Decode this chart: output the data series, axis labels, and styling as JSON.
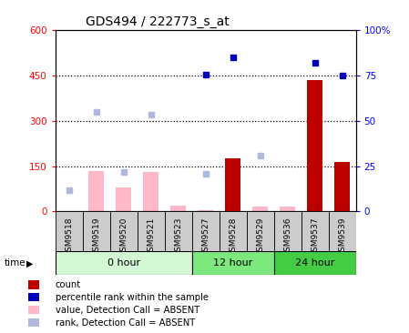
{
  "title": "GDS494 / 222773_s_at",
  "samples": [
    "GSM9518",
    "GSM9519",
    "GSM9520",
    "GSM9521",
    "GSM9523",
    "GSM9527",
    "GSM9528",
    "GSM9529",
    "GSM9536",
    "GSM9537",
    "GSM9539"
  ],
  "groups": [
    "0 hour",
    "0 hour",
    "0 hour",
    "0 hour",
    "0 hour",
    "12 hour",
    "12 hour",
    "12 hour",
    "24 hour",
    "24 hour",
    "24 hour"
  ],
  "count_values": [
    null,
    null,
    null,
    null,
    null,
    null,
    175,
    null,
    null,
    435,
    165
  ],
  "percentile_values": [
    null,
    null,
    null,
    null,
    null,
    75.5,
    85,
    null,
    null,
    82,
    75
  ],
  "absent_value_bars": [
    null,
    135,
    80,
    130,
    20,
    5,
    null,
    15,
    15,
    null,
    null
  ],
  "absent_rank_dots": [
    70,
    330,
    130,
    320,
    null,
    125,
    null,
    185,
    null,
    null,
    null
  ],
  "ylim_left": [
    0,
    600
  ],
  "ylim_right": [
    0,
    100
  ],
  "yticks_left": [
    0,
    150,
    300,
    450,
    600
  ],
  "yticks_right": [
    0,
    25,
    50,
    75,
    100
  ],
  "ytick_labels_left": [
    "0",
    "150",
    "300",
    "450",
    "600"
  ],
  "ytick_labels_right": [
    "0",
    "25",
    "50",
    "75",
    "100%"
  ],
  "hlines": [
    150,
    300,
    450
  ],
  "group_colors": {
    "0 hour": "#d4f7d4",
    "12 hour": "#7de87d",
    "24 hour": "#44cc44"
  },
  "color_count": "#bb0000",
  "color_percentile": "#0000bb",
  "color_absent_value": "#ffb8c8",
  "color_absent_rank": "#b0b8dd",
  "bar_width": 0.55,
  "legend_items": [
    {
      "label": "count",
      "color": "#bb0000"
    },
    {
      "label": "percentile rank within the sample",
      "color": "#0000bb"
    },
    {
      "label": "value, Detection Call = ABSENT",
      "color": "#ffb8c8"
    },
    {
      "label": "rank, Detection Call = ABSENT",
      "color": "#b0b8dd"
    }
  ]
}
